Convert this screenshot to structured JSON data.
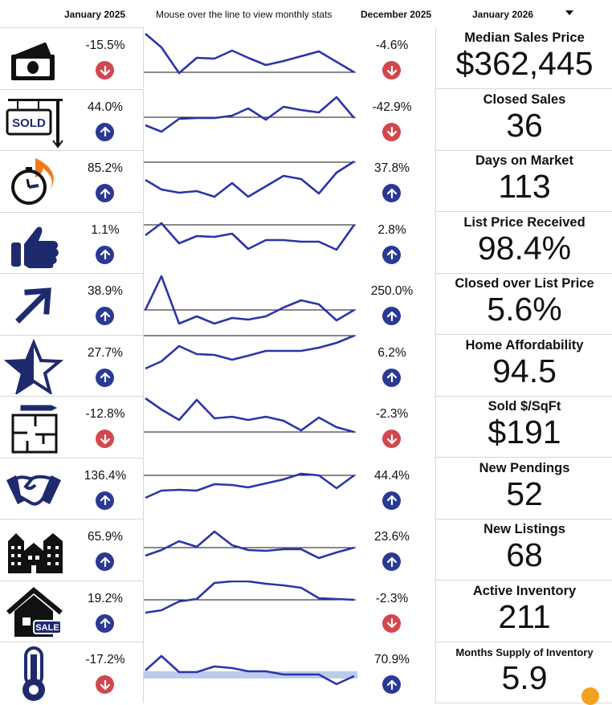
{
  "header": {
    "start_month": "January 2025",
    "hint": "Mouse over the line to view monthly stats",
    "end_month": "December 2025",
    "selected_month": "January 2026"
  },
  "rows": [
    {
      "icon": "money-icon",
      "left_pct": "-15.5%",
      "left_dir": "down",
      "right_pct": "-4.6%",
      "right_dir": "down",
      "label": "Median Sales Price",
      "value": "$362,445"
    },
    {
      "icon": "sold-sign-icon",
      "left_pct": "44.0%",
      "left_dir": "up",
      "right_pct": "-42.9%",
      "right_dir": "down",
      "label": "Closed Sales",
      "value": "36"
    },
    {
      "icon": "stopwatch-fire-icon",
      "left_pct": "85.2%",
      "left_dir": "up",
      "right_pct": "37.8%",
      "right_dir": "up",
      "label": "Days on Market",
      "value": "113"
    },
    {
      "icon": "thumbs-up-icon",
      "left_pct": "1.1%",
      "left_dir": "up",
      "right_pct": "2.8%",
      "right_dir": "up",
      "label": "List Price Received",
      "value": "98.4%"
    },
    {
      "icon": "arrow-up-right-icon",
      "left_pct": "38.9%",
      "left_dir": "up",
      "right_pct": "250.0%",
      "right_dir": "up",
      "label": "Closed over List Price",
      "value": "5.6%"
    },
    {
      "icon": "star-icon",
      "left_pct": "27.7%",
      "left_dir": "up",
      "right_pct": "6.2%",
      "right_dir": "up",
      "label": "Home Affordability",
      "value": "94.5"
    },
    {
      "icon": "floor-plan-icon",
      "left_pct": "-12.8%",
      "left_dir": "down",
      "right_pct": "-2.3%",
      "right_dir": "down",
      "label": "Sold $/SqFt",
      "value": "$191"
    },
    {
      "icon": "handshake-icon",
      "left_pct": "136.4%",
      "left_dir": "up",
      "right_pct": "44.4%",
      "right_dir": "up",
      "label": "New Pendings",
      "value": "52"
    },
    {
      "icon": "houses-icon",
      "left_pct": "65.9%",
      "left_dir": "up",
      "right_pct": "23.6%",
      "right_dir": "up",
      "label": "New Listings",
      "value": "68"
    },
    {
      "icon": "house-sale-icon",
      "left_pct": "19.2%",
      "left_dir": "up",
      "right_pct": "-2.3%",
      "right_dir": "down",
      "label": "Active Inventory",
      "value": "211"
    },
    {
      "icon": "thermometer-icon",
      "left_pct": "-17.2%",
      "left_dir": "down",
      "right_pct": "70.9%",
      "right_dir": "up",
      "label": "Months Supply of Inventory",
      "value": "5.9"
    }
  ],
  "colors": {
    "line": "#2a35a8",
    "up": "#2a3a92",
    "down": "#d2474f",
    "icon": "#1f2a6e"
  }
}
